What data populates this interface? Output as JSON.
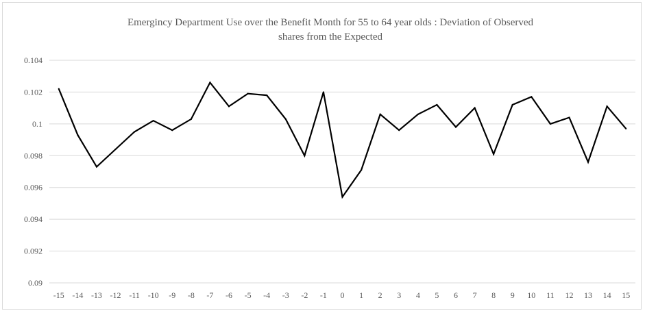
{
  "chart_data": {
    "type": "line",
    "title_lines": [
      "Emergincy  Department Use over the Benefit Month for 55 to 64 year  olds : Deviation of Observed",
      "shares from the Expected"
    ],
    "x": [
      "-15",
      "-14",
      "-13",
      "-12",
      "-11",
      "-10",
      "-9",
      "-8",
      "-7",
      "-6",
      "-5",
      "-4",
      "-3",
      "-2",
      "-1",
      "0",
      "1",
      "2",
      "3",
      "4",
      "5",
      "6",
      "7",
      "8",
      "9",
      "10",
      "11",
      "12",
      "13",
      "14",
      "15"
    ],
    "series": [
      {
        "values": [
          0.1022,
          0.0993,
          0.0973,
          0.0984,
          0.0995,
          0.1002,
          0.0996,
          0.1003,
          0.1026,
          0.1011,
          0.1019,
          0.1018,
          0.1003,
          0.098,
          0.102,
          0.0954,
          0.0971,
          0.1006,
          0.0996,
          0.1006,
          0.1012,
          0.0998,
          0.101,
          0.0981,
          0.1012,
          0.1017,
          0.1,
          0.1004,
          0.0976,
          0.1011,
          0.0997
        ],
        "color": "#000000"
      }
    ],
    "ylim": [
      0.09,
      0.104
    ],
    "yticks": [
      "0.09",
      "0.092",
      "0.094",
      "0.096",
      "0.098",
      "0.1",
      "0.102",
      "0.104"
    ],
    "ytick_values": [
      0.09,
      0.092,
      0.094,
      0.096,
      0.098,
      0.1,
      0.102,
      0.104
    ],
    "grid": true,
    "legend": "none"
  }
}
